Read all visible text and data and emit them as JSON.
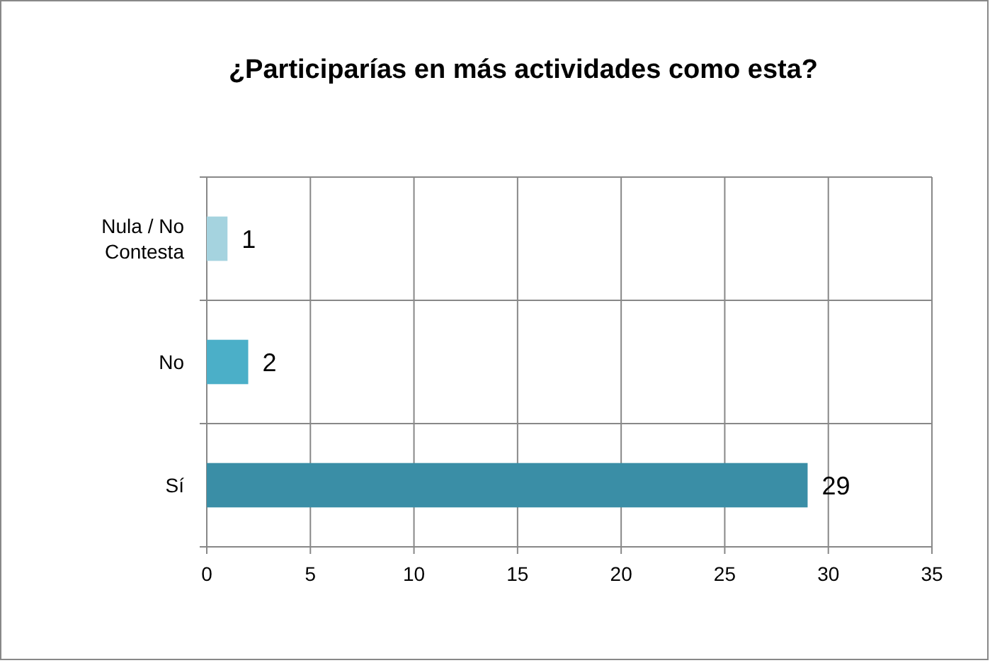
{
  "chart_data": {
    "type": "bar",
    "orientation": "horizontal",
    "title": "¿Participarías en más actividades como esta?",
    "categories": [
      "Nula / No Contesta",
      "No",
      "Sí"
    ],
    "values": [
      1,
      2,
      29
    ],
    "colors": [
      "#a5d3df",
      "#4bafc8",
      "#3a8ea6"
    ],
    "xlim": [
      0,
      35
    ],
    "xticks": [
      0,
      5,
      10,
      15,
      20,
      25,
      30,
      35
    ],
    "grid": true,
    "data_labels": true
  }
}
